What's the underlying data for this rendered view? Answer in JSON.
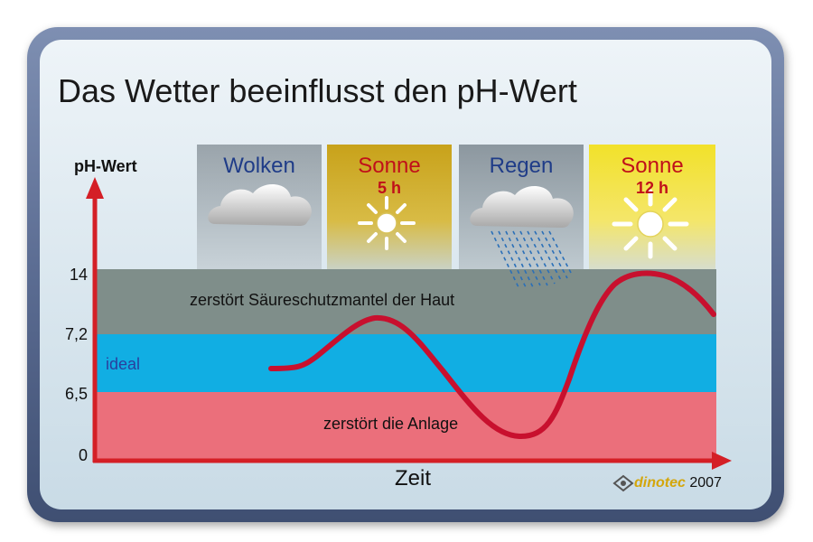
{
  "title": "Das Wetter beeinflusst den pH-Wert",
  "y_axis": {
    "label": "pH-Wert",
    "ticks": [
      "14",
      "7,2",
      "6,5",
      "0"
    ]
  },
  "x_axis": {
    "label": "Zeit"
  },
  "weather": [
    {
      "label": "Wolken",
      "hours": "",
      "icon": "cloud-icon",
      "color": "#1f3c88"
    },
    {
      "label": "Sonne",
      "hours": "5 h",
      "icon": "sun-icon",
      "color": "#c0101a"
    },
    {
      "label": "Regen",
      "hours": "",
      "icon": "rain-cloud-icon",
      "color": "#1f3c88"
    },
    {
      "label": "Sonne",
      "hours": "12 h",
      "icon": "sun-icon",
      "color": "#c0101a"
    }
  ],
  "zones": {
    "top": "zerstört Säureschutzmantel der Haut",
    "ideal": "ideal",
    "bottom": "zerstört die Anlage"
  },
  "zone_colors": {
    "top": "#7f8e8a",
    "ideal": "#11aee3",
    "bottom": "#eb6f7b"
  },
  "brand": {
    "name": "dinotec",
    "year": "2007"
  }
}
